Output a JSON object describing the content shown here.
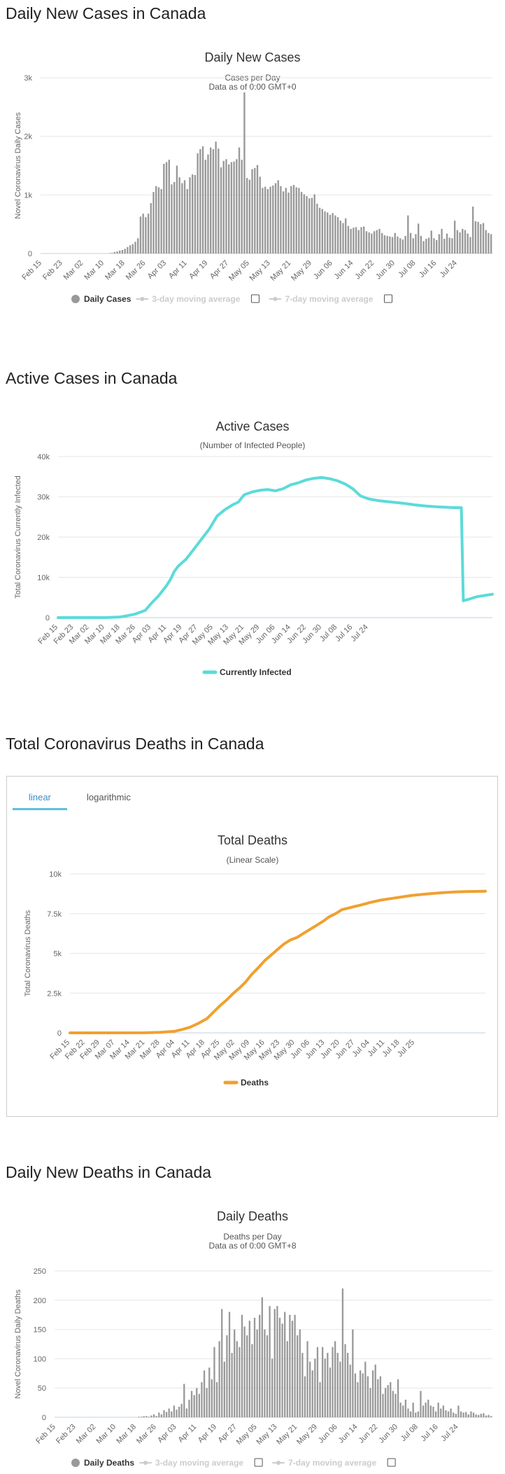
{
  "sections": {
    "daily_cases_title": "Daily New Cases in Canada",
    "active_title": "Active Cases in Canada",
    "deaths_title": "Total Coronavirus Deaths in Canada",
    "daily_deaths_title": "Daily New Deaths in Canada"
  },
  "tabs": {
    "linear": "linear",
    "logarithmic": "logarithmic"
  },
  "legend_icons": {
    "circle": "circle-marker-icon",
    "line": "line-marker-icon",
    "checkbox": "checkbox-icon"
  },
  "chart_data": [
    {
      "id": "daily-cases",
      "type": "bar",
      "title": "Daily New Cases",
      "subtitle": "Cases per Day",
      "subtitle2": "Data as of 0:00 GMT+0",
      "ylabel": "Novel Coronavirus Daily Cases",
      "ylim": [
        0,
        3000
      ],
      "yticks": [
        0,
        1000,
        2000,
        3000
      ],
      "ytick_labels": [
        "0",
        "1k",
        "2k",
        "3k"
      ],
      "xtick_labels": [
        "Feb 15",
        "Feb 23",
        "Mar 02",
        "Mar 10",
        "Mar 18",
        "Mar 26",
        "Apr 03",
        "Apr 11",
        "Apr 19",
        "Apr 27",
        "May 05",
        "May 13",
        "May 21",
        "May 29",
        "Jun 06",
        "Jun 14",
        "Jun 22",
        "Jun 30",
        "Jul 08",
        "Jul 16",
        "Jul 24"
      ],
      "xtick_step": 8,
      "values": [
        0,
        0,
        0,
        0,
        0,
        0,
        0,
        0,
        0,
        0,
        0,
        0,
        0,
        0,
        0,
        0,
        0,
        0,
        0,
        0,
        0,
        0,
        0,
        0,
        0,
        0,
        5,
        10,
        25,
        35,
        50,
        60,
        80,
        110,
        140,
        160,
        200,
        260,
        630,
        680,
        620,
        680,
        860,
        1050,
        1150,
        1130,
        1100,
        1530,
        1560,
        1600,
        1180,
        1220,
        1500,
        1300,
        1200,
        1250,
        1100,
        1300,
        1350,
        1340,
        1710,
        1780,
        1830,
        1600,
        1690,
        1810,
        1780,
        1910,
        1790,
        1470,
        1580,
        1610,
        1520,
        1560,
        1570,
        1610,
        1810,
        1600,
        2750,
        1290,
        1260,
        1440,
        1460,
        1510,
        1310,
        1120,
        1140,
        1100,
        1140,
        1160,
        1200,
        1250,
        1150,
        1060,
        1120,
        1040,
        1150,
        1170,
        1130,
        1120,
        1050,
        1010,
        980,
        940,
        950,
        1010,
        850,
        780,
        760,
        720,
        700,
        660,
        690,
        650,
        620,
        560,
        520,
        600,
        470,
        420,
        440,
        450,
        400,
        450,
        460,
        380,
        360,
        340,
        380,
        400,
        420,
        350,
        310,
        300,
        290,
        280,
        350,
        290,
        260,
        240,
        300,
        650,
        350,
        260,
        330,
        510,
        300,
        210,
        250,
        270,
        390,
        260,
        230,
        330,
        420,
        250,
        340,
        270,
        260,
        560,
        400,
        360,
        420,
        400,
        340,
        280,
        800,
        550,
        540,
        500,
        520,
        400,
        350,
        330
      ],
      "legend": [
        {
          "name": "Daily Cases",
          "active": true
        },
        {
          "name": "3-day moving average",
          "active": false
        },
        {
          "name": "7-day moving average",
          "active": false
        }
      ]
    },
    {
      "id": "active-cases",
      "type": "line",
      "title": "Active Cases",
      "subtitle": "(Number of Infected People)",
      "ylabel": "Total Coronavirus Currently Infected",
      "ylim": [
        0,
        40000
      ],
      "yticks": [
        0,
        10000,
        20000,
        30000,
        40000
      ],
      "ytick_labels": [
        "0",
        "10k",
        "20k",
        "30k",
        "40k"
      ],
      "xtick_labels": [
        "Feb 15",
        "Feb 23",
        "Mar 02",
        "Mar 10",
        "Mar 18",
        "Mar 26",
        "Apr 03",
        "Apr 11",
        "Apr 19",
        "Apr 27",
        "May 05",
        "May 13",
        "May 21",
        "May 29",
        "Jun 06",
        "Jun 14",
        "Jun 22",
        "Jun 30",
        "Jul 08",
        "Jul 16",
        "Jul 24"
      ],
      "xtick_step": 8,
      "color": "#5bdbd9",
      "points": [
        [
          0,
          0
        ],
        [
          24,
          0
        ],
        [
          32,
          150
        ],
        [
          36,
          500
        ],
        [
          40,
          900
        ],
        [
          45,
          1800
        ],
        [
          48,
          3500
        ],
        [
          52,
          5500
        ],
        [
          56,
          8000
        ],
        [
          58,
          9500
        ],
        [
          60,
          11500
        ],
        [
          62,
          12800
        ],
        [
          66,
          14500
        ],
        [
          70,
          17000
        ],
        [
          74,
          19500
        ],
        [
          78,
          22000
        ],
        [
          82,
          25200
        ],
        [
          86,
          26800
        ],
        [
          90,
          28000
        ],
        [
          93,
          28700
        ],
        [
          96,
          30500
        ],
        [
          100,
          31200
        ],
        [
          104,
          31600
        ],
        [
          108,
          31800
        ],
        [
          112,
          31500
        ],
        [
          116,
          32000
        ],
        [
          120,
          33000
        ],
        [
          124,
          33500
        ],
        [
          128,
          34200
        ],
        [
          132,
          34600
        ],
        [
          136,
          34800
        ],
        [
          140,
          34500
        ],
        [
          144,
          34000
        ],
        [
          148,
          33200
        ],
        [
          152,
          32000
        ],
        [
          156,
          30200
        ],
        [
          160,
          29500
        ],
        [
          166,
          29000
        ],
        [
          172,
          28700
        ],
        [
          178,
          28400
        ],
        [
          184,
          28000
        ],
        [
          190,
          27700
        ],
        [
          196,
          27500
        ],
        [
          200,
          27400
        ],
        [
          204,
          27300
        ],
        [
          208,
          27300
        ],
        [
          209,
          4200
        ],
        [
          212,
          4600
        ],
        [
          216,
          5200
        ],
        [
          220,
          5500
        ],
        [
          224,
          5800
        ]
      ],
      "x_max": 224,
      "legend": [
        {
          "name": "Currently Infected",
          "active": true
        }
      ]
    },
    {
      "id": "total-deaths",
      "type": "line",
      "title": "Total Deaths",
      "subtitle": "(Linear Scale)",
      "ylabel": "Total Coronavirus Deaths",
      "ylim": [
        0,
        10000
      ],
      "yticks": [
        0,
        2500,
        5000,
        7500,
        10000
      ],
      "ytick_labels": [
        "0",
        "2.5k",
        "5k",
        "7.5k",
        "10k"
      ],
      "xtick_labels": [
        "Feb 15",
        "Feb 22",
        "Feb 29",
        "Mar 07",
        "Mar 14",
        "Mar 21",
        "Mar 28",
        "Apr 04",
        "Apr 11",
        "Apr 18",
        "Apr 25",
        "May 02",
        "May 09",
        "May 16",
        "May 23",
        "May 30",
        "Jun 06",
        "Jun 13",
        "Jun 20",
        "Jun 27",
        "Jul 04",
        "Jul 11",
        "Jul 18",
        "Jul 25"
      ],
      "xtick_step": 7,
      "color": "#f0a030",
      "points": [
        [
          0,
          0
        ],
        [
          35,
          5
        ],
        [
          42,
          30
        ],
        [
          49,
          100
        ],
        [
          52,
          200
        ],
        [
          56,
          350
        ],
        [
          60,
          600
        ],
        [
          64,
          900
        ],
        [
          67,
          1300
        ],
        [
          70,
          1700
        ],
        [
          73,
          2050
        ],
        [
          76,
          2450
        ],
        [
          79,
          2800
        ],
        [
          82,
          3200
        ],
        [
          85,
          3700
        ],
        [
          88,
          4100
        ],
        [
          91,
          4550
        ],
        [
          94,
          4900
        ],
        [
          97,
          5250
        ],
        [
          100,
          5600
        ],
        [
          103,
          5850
        ],
        [
          106,
          6000
        ],
        [
          109,
          6250
        ],
        [
          112,
          6500
        ],
        [
          115,
          6750
        ],
        [
          118,
          7000
        ],
        [
          121,
          7300
        ],
        [
          124,
          7500
        ],
        [
          127,
          7750
        ],
        [
          130,
          7850
        ],
        [
          133,
          7950
        ],
        [
          136,
          8050
        ],
        [
          140,
          8200
        ],
        [
          145,
          8350
        ],
        [
          150,
          8450
        ],
        [
          155,
          8550
        ],
        [
          160,
          8650
        ],
        [
          165,
          8720
        ],
        [
          170,
          8780
        ],
        [
          175,
          8830
        ],
        [
          180,
          8870
        ],
        [
          185,
          8890
        ],
        [
          190,
          8900
        ],
        [
          194,
          8910
        ]
      ],
      "x_max": 194,
      "legend": [
        {
          "name": "Deaths",
          "active": true
        }
      ]
    },
    {
      "id": "daily-deaths",
      "type": "bar",
      "title": "Daily Deaths",
      "subtitle": "Deaths per Day",
      "subtitle2": "Data as of 0:00 GMT+8",
      "ylabel": "Novel Coronavirus Daily Deaths",
      "ylim": [
        0,
        250
      ],
      "yticks": [
        0,
        50,
        100,
        150,
        200,
        250
      ],
      "ytick_labels": [
        "0",
        "50",
        "100",
        "150",
        "200",
        "250"
      ],
      "xtick_labels": [
        "Feb 15",
        "Feb 23",
        "Mar 02",
        "Mar 10",
        "Mar 18",
        "Mar 26",
        "Apr 03",
        "Apr 11",
        "Apr 19",
        "Apr 27",
        "May 05",
        "May 13",
        "May 21",
        "May 29",
        "Jun 06",
        "Jun 14",
        "Jun 22",
        "Jun 30",
        "Jul 08",
        "Jul 16",
        "Jul 24"
      ],
      "xtick_step": 8,
      "values": [
        0,
        0,
        0,
        0,
        0,
        0,
        0,
        0,
        0,
        0,
        0,
        0,
        0,
        0,
        0,
        0,
        0,
        0,
        0,
        0,
        0,
        0,
        0,
        0,
        0,
        0,
        0,
        0,
        0,
        0,
        0,
        0,
        0,
        1,
        1,
        2,
        2,
        1,
        3,
        5,
        2,
        8,
        5,
        12,
        9,
        15,
        10,
        20,
        13,
        18,
        23,
        57,
        15,
        30,
        45,
        38,
        50,
        40,
        60,
        80,
        50,
        85,
        65,
        120,
        60,
        130,
        185,
        95,
        140,
        180,
        110,
        150,
        130,
        120,
        175,
        155,
        140,
        165,
        125,
        170,
        150,
        175,
        205,
        150,
        140,
        190,
        100,
        185,
        190,
        170,
        160,
        180,
        130,
        175,
        165,
        175,
        140,
        150,
        110,
        70,
        130,
        95,
        80,
        100,
        120,
        60,
        120,
        100,
        110,
        85,
        120,
        130,
        110,
        95,
        220,
        125,
        110,
        90,
        150,
        75,
        60,
        80,
        75,
        95,
        70,
        50,
        80,
        90,
        65,
        70,
        40,
        50,
        55,
        60,
        45,
        40,
        65,
        25,
        20,
        30,
        15,
        10,
        25,
        8,
        10,
        45,
        20,
        25,
        30,
        20,
        18,
        10,
        25,
        15,
        20,
        12,
        10,
        15,
        8,
        6,
        20,
        10,
        8,
        9,
        5,
        10,
        8,
        5,
        4,
        6,
        7,
        3,
        4,
        2
      ],
      "legend": [
        {
          "name": "Daily Deaths",
          "active": true
        },
        {
          "name": "3-day moving average",
          "active": false
        },
        {
          "name": "7-day moving average",
          "active": false
        }
      ]
    }
  ]
}
